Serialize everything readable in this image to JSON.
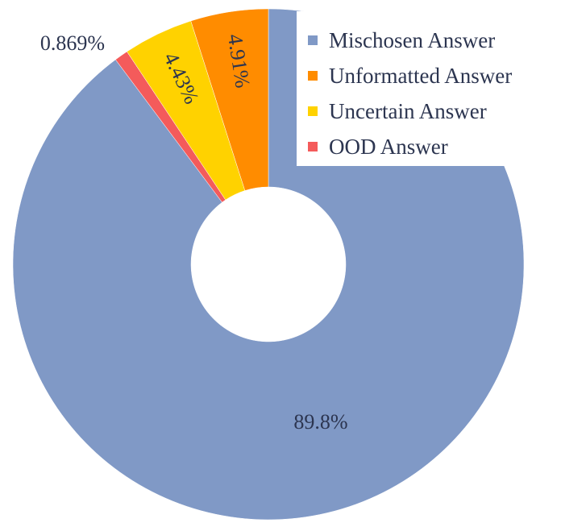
{
  "chart_data": {
    "type": "pie",
    "variant": "donut",
    "title": "",
    "legend_position": "top-right",
    "slices": [
      {
        "name": "Mischosen Answer",
        "value": 89.8,
        "label": "89.8%",
        "color": "#8099c6"
      },
      {
        "name": "OOD Answer",
        "value": 0.869,
        "label": "0.869%",
        "color": "#f45b5b"
      },
      {
        "name": "Uncertain Answer",
        "value": 4.43,
        "label": "4.43%",
        "color": "#ffd200"
      },
      {
        "name": "Unformatted Answer",
        "value": 4.91,
        "label": "4.91%",
        "color": "#ff8c00"
      }
    ],
    "legend": [
      {
        "name": "Mischosen Answer",
        "color": "#8099c6"
      },
      {
        "name": "Unformatted Answer",
        "color": "#ff8c00"
      },
      {
        "name": "Uncertain Answer",
        "color": "#ffd200"
      },
      {
        "name": "OOD Answer",
        "color": "#f45b5b"
      }
    ]
  }
}
